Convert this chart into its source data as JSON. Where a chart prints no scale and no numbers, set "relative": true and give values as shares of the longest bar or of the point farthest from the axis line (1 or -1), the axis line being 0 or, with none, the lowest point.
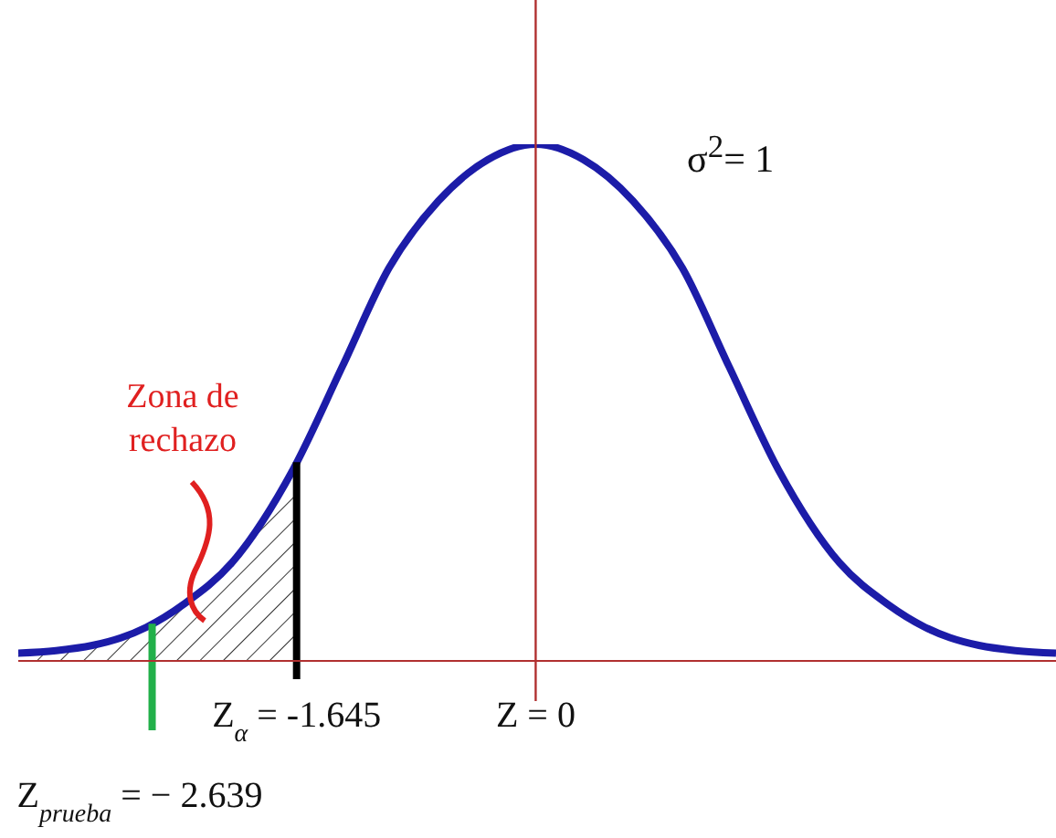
{
  "chart_data": {
    "type": "line",
    "relative": true,
    "xlim": [
      -3.56,
      3.58
    ],
    "xticks": [
      {
        "value": -1.645,
        "label": "Z$_{α}$ = -1.645"
      },
      {
        "value": 0,
        "label": "Z = 0"
      }
    ],
    "series": [
      {
        "type": "line",
        "color": "#1c1ca8",
        "x": [
          -3.56,
          -3.3,
          -3.05,
          -2.85,
          -2.68,
          -2.42,
          -2.09,
          -1.67,
          -1.33,
          -1.01,
          -0.67,
          -0.33,
          0,
          0.33,
          0.67,
          1.01,
          1.33,
          1.67,
          2.09,
          2.42,
          2.68,
          2.85,
          3.05,
          3.3,
          3.58
        ],
        "values": [
          0.015,
          0.02,
          0.03,
          0.045,
          0.065,
          0.11,
          0.19,
          0.37,
          0.57,
          0.76,
          0.89,
          0.97,
          1,
          0.97,
          0.89,
          0.76,
          0.57,
          0.37,
          0.19,
          0.11,
          0.065,
          0.045,
          0.03,
          0.02,
          0.015
        ]
      },
      {
        "type": "area",
        "color": "#000000",
        "x": [
          -3.56,
          -3.3,
          -3.05,
          -2.85,
          -2.68,
          -2.42,
          -2.09,
          -1.645
        ],
        "values": [
          0.015,
          0.02,
          0.03,
          0.045,
          0.065,
          0.11,
          0.19,
          0.38
        ]
      }
    ],
    "ref_lines": [
      {
        "axis": "x",
        "value": 0,
        "color": "#b03030"
      },
      {
        "axis": "x",
        "value": -1.645,
        "color": "#000000"
      },
      {
        "axis": "x",
        "value": -2.639,
        "color": "#22b04a",
        "label": "Z$_{prueba}$ = − 2.639"
      }
    ],
    "annotations": [
      "σ$^{2}$= 1",
      "Zona de rechazo"
    ]
  }
}
